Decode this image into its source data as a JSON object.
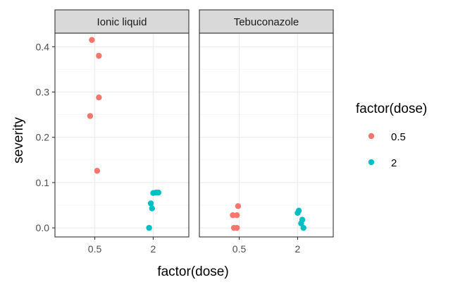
{
  "chart_data": {
    "type": "scatter",
    "facets": [
      "Ionic liquid",
      "Tebuconazole"
    ],
    "xlabel": "factor(dose)",
    "ylabel": "severity",
    "categories": [
      "0.5",
      "2"
    ],
    "ylim": [
      -0.02,
      0.43
    ],
    "yticks": [
      0.0,
      0.1,
      0.2,
      0.3,
      0.4
    ],
    "ytick_labels": [
      "0.0",
      "0.1",
      "0.2",
      "0.3",
      "0.4"
    ],
    "grid": true,
    "legend": {
      "title": "factor(dose)",
      "position": "right",
      "entries": [
        {
          "label": "0.5",
          "color": "#F8766D"
        },
        {
          "label": "2",
          "color": "#00BFC4"
        }
      ]
    },
    "points": [
      {
        "facet": "Ionic liquid",
        "dose": "0.5",
        "x_jitter": -0.05,
        "y": 0.415
      },
      {
        "facet": "Ionic liquid",
        "dose": "0.5",
        "x_jitter": 0.07,
        "y": 0.38
      },
      {
        "facet": "Ionic liquid",
        "dose": "0.5",
        "x_jitter": 0.07,
        "y": 0.288
      },
      {
        "facet": "Ionic liquid",
        "dose": "0.5",
        "x_jitter": -0.08,
        "y": 0.247
      },
      {
        "facet": "Ionic liquid",
        "dose": "0.5",
        "x_jitter": 0.04,
        "y": 0.126
      },
      {
        "facet": "Ionic liquid",
        "dose": "2",
        "x_jitter": 0.0,
        "y": 0.077
      },
      {
        "facet": "Ionic liquid",
        "dose": "2",
        "x_jitter": 0.05,
        "y": 0.078
      },
      {
        "facet": "Ionic liquid",
        "dose": "2",
        "x_jitter": 0.09,
        "y": 0.078
      },
      {
        "facet": "Ionic liquid",
        "dose": "2",
        "x_jitter": -0.04,
        "y": 0.054
      },
      {
        "facet": "Ionic liquid",
        "dose": "2",
        "x_jitter": -0.02,
        "y": 0.043
      },
      {
        "facet": "Ionic liquid",
        "dose": "2",
        "x_jitter": -0.07,
        "y": 0.0
      },
      {
        "facet": "Tebuconazole",
        "dose": "0.5",
        "x_jitter": -0.11,
        "y": 0.028
      },
      {
        "facet": "Tebuconazole",
        "dose": "0.5",
        "x_jitter": -0.04,
        "y": 0.028
      },
      {
        "facet": "Tebuconazole",
        "dose": "0.5",
        "x_jitter": -0.04,
        "y": 0.0
      },
      {
        "facet": "Tebuconazole",
        "dose": "0.5",
        "x_jitter": -0.09,
        "y": 0.0
      },
      {
        "facet": "Tebuconazole",
        "dose": "0.5",
        "x_jitter": -0.02,
        "y": 0.048
      },
      {
        "facet": "Tebuconazole",
        "dose": "2",
        "x_jitter": 0.0,
        "y": 0.033
      },
      {
        "facet": "Tebuconazole",
        "dose": "2",
        "x_jitter": 0.02,
        "y": 0.038
      },
      {
        "facet": "Tebuconazole",
        "dose": "2",
        "x_jitter": 0.08,
        "y": 0.018
      },
      {
        "facet": "Tebuconazole",
        "dose": "2",
        "x_jitter": 0.06,
        "y": 0.01
      },
      {
        "facet": "Tebuconazole",
        "dose": "2",
        "x_jitter": 0.1,
        "y": 0.0
      }
    ]
  }
}
